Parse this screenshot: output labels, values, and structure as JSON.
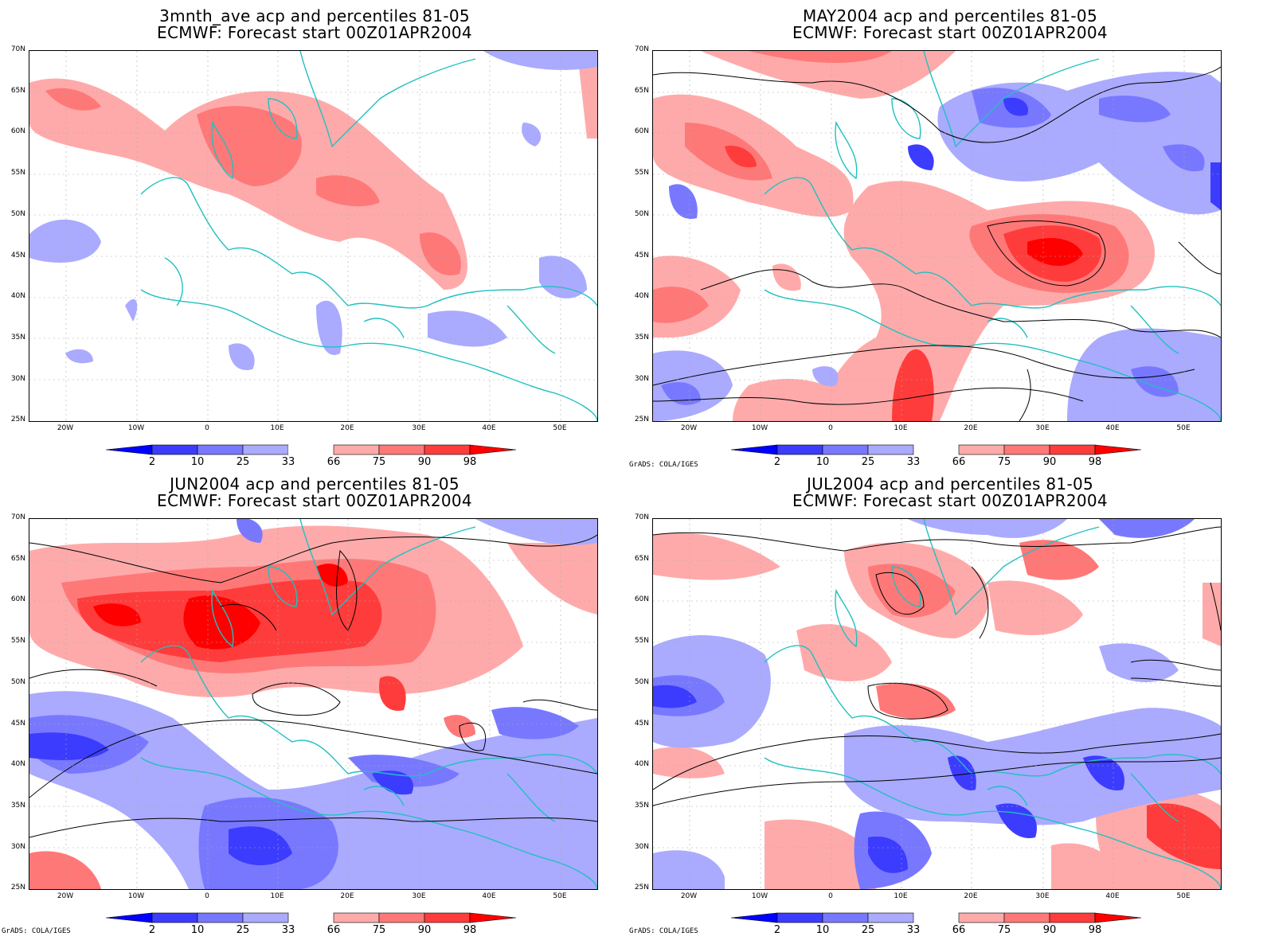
{
  "panels": [
    {
      "id": "p1",
      "title_line1": "3mnth_ave acp and percentiles 81-05",
      "title_line2": "ECMWF: Forecast start 00Z01APR2004",
      "credit": ""
    },
    {
      "id": "p2",
      "title_line1": "MAY2004 acp and percentiles 81-05",
      "title_line2": "ECMWF: Forecast start 00Z01APR2004",
      "credit": "GrADS: COLA/IGES"
    },
    {
      "id": "p3",
      "title_line1": "JUN2004 acp and percentiles 81-05",
      "title_line2": "ECMWF: Forecast start 00Z01APR2004",
      "credit": "GrADS: COLA/IGES"
    },
    {
      "id": "p4",
      "title_line1": "JUL2004 acp and percentiles 81-05",
      "title_line2": "ECMWF: Forecast start 00Z01APR2004",
      "credit": "GrADS: COLA/IGES"
    }
  ],
  "lat_labels": [
    "70N",
    "65N",
    "60N",
    "55N",
    "50N",
    "45N",
    "40N",
    "35N",
    "30N",
    "25N"
  ],
  "lon_labels": [
    "20W",
    "10W",
    "0",
    "10E",
    "20E",
    "30E",
    "40E",
    "50E"
  ],
  "colorbar": {
    "labels": [
      "2",
      "10",
      "25",
      "33",
      "66",
      "75",
      "90",
      "98"
    ],
    "colors": [
      "#0000ff",
      "#3c3cff",
      "#7878ff",
      "#aaaaff",
      "#ffffff",
      "#ffaaaa",
      "#ff7878",
      "#ff3c3c",
      "#ff0000"
    ]
  },
  "colors": {
    "coast": "#20c0c0",
    "contour": "#000000",
    "grid": "#aaaaaa"
  }
}
